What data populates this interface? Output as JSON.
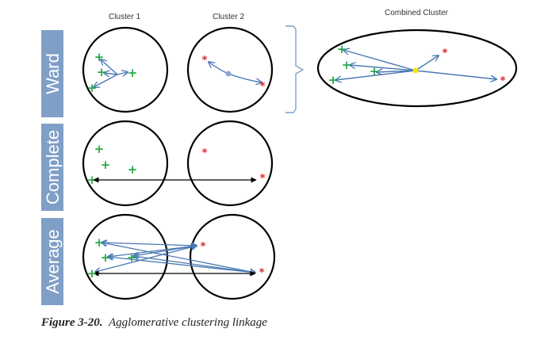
{
  "headers": {
    "cluster1": "Cluster 1",
    "cluster2": "Cluster 2",
    "combined": "Combined Cluster"
  },
  "rows": {
    "ward": "Ward",
    "complete": "Complete",
    "average": "Average"
  },
  "caption": {
    "label": "Figure 3-20.",
    "text": "Agglomerative clustering linkage"
  },
  "markers": {
    "plus": "+",
    "star": "*"
  },
  "colors": {
    "tab_fill": "#7f9fc6",
    "plus": "#2aa84a",
    "star": "#d9262c",
    "arrow": "#4a79b5",
    "centroid_combined": "#f2e600",
    "centroid_cluster2": "#8aa7d0",
    "bracket": "#7f9fc6"
  }
}
